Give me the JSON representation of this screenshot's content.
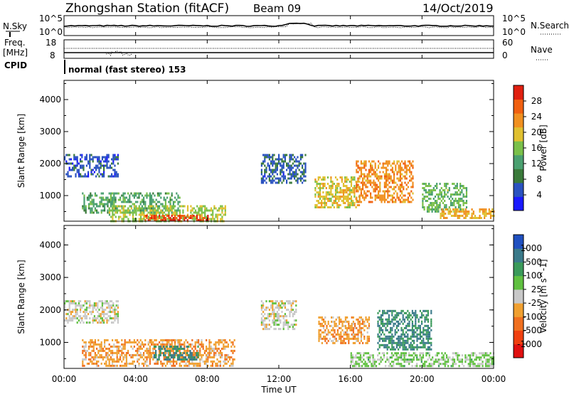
{
  "header": {
    "station": "Zhongshan Station (fitACF)",
    "beam": "Beam 09",
    "date": "14/Oct/2019"
  },
  "panel_sky": {
    "label_left": "N.Sky",
    "label_right": "N.Search",
    "yticks_left": [
      "10^5",
      "10^0"
    ],
    "yticks_right": [
      "10^5",
      "10^0"
    ]
  },
  "panel_freq": {
    "label_left_1": "Freq.",
    "label_left_2": "[MHz]",
    "label_right": "Nave",
    "yticks_left": [
      "18",
      "8"
    ],
    "yticks_right": [
      "60",
      "0"
    ]
  },
  "cpid": {
    "label": "CPID",
    "mode": "normal (fast stereo) 153"
  },
  "xaxis": {
    "label": "Time UT",
    "ticks": [
      "00:00",
      "04:00",
      "08:00",
      "12:00",
      "16:00",
      "20:00",
      "00:00"
    ]
  },
  "colors": {
    "scale_power": [
      "#1a1aff",
      "#2a52c0",
      "#3a7a3a",
      "#4aa070",
      "#7ac04a",
      "#e0c030",
      "#f09020",
      "#f06010",
      "#e02010"
    ],
    "scale_velocity": [
      "#e01010",
      "#f04010",
      "#f07020",
      "#f0a030",
      "#c8c8c8",
      "#60c040",
      "#3a9a5a",
      "#3a7a8a",
      "#2050c0"
    ]
  },
  "chart_data": [
    {
      "type": "heatmap",
      "title": "",
      "xlabel": "Time UT",
      "ylabel": "Slant Range [km]",
      "ylim": [
        200,
        4600
      ],
      "yticks": [
        "4000",
        "3000",
        "2000",
        "1000"
      ],
      "colorbar": {
        "label": "Power [dB]",
        "ticks": [
          "28",
          "24",
          "20",
          "16",
          "12",
          "8",
          "4"
        ],
        "range": [
          0,
          30
        ]
      },
      "regions": [
        {
          "t0": 0.0,
          "t1": 3.0,
          "r0": 1600,
          "r1": 2300,
          "value": 5
        },
        {
          "t0": 1.0,
          "t1": 6.5,
          "r0": 450,
          "r1": 1100,
          "value": 12
        },
        {
          "t0": 2.5,
          "t1": 9.0,
          "r0": 200,
          "r1": 700,
          "value": 16
        },
        {
          "t0": 4.5,
          "t1": 8.0,
          "r0": 200,
          "r1": 400,
          "value": 26
        },
        {
          "t0": 11.0,
          "t1": 13.5,
          "r0": 1400,
          "r1": 2300,
          "value": 6
        },
        {
          "t0": 14.0,
          "t1": 16.5,
          "r0": 600,
          "r1": 1600,
          "value": 18
        },
        {
          "t0": 16.3,
          "t1": 19.5,
          "r0": 800,
          "r1": 2100,
          "value": 22
        },
        {
          "t0": 20.0,
          "t1": 22.5,
          "r0": 500,
          "r1": 1400,
          "value": 14
        },
        {
          "t0": 21.0,
          "t1": 24.0,
          "r0": 300,
          "r1": 600,
          "value": 20
        }
      ]
    },
    {
      "type": "heatmap",
      "title": "",
      "xlabel": "Time UT",
      "ylabel": "Slant Range [km]",
      "ylim": [
        200,
        4600
      ],
      "yticks": [
        "4000",
        "3000",
        "2000",
        "1000"
      ],
      "colorbar": {
        "label": "Velocity [m s^-1]",
        "ticks": [
          "1000",
          "500",
          "100",
          "25",
          "-25",
          "-100",
          "-500",
          "-1000"
        ],
        "range": [
          -1200,
          1200
        ]
      },
      "regions": [
        {
          "t0": 0.0,
          "t1": 3.0,
          "r0": 1600,
          "r1": 2300,
          "value": 0
        },
        {
          "t0": 1.0,
          "t1": 9.5,
          "r0": 300,
          "r1": 1100,
          "value": -300
        },
        {
          "t0": 5.0,
          "t1": 7.5,
          "r0": 500,
          "r1": 900,
          "value": 700
        },
        {
          "t0": 11.0,
          "t1": 13.0,
          "r0": 1400,
          "r1": 2300,
          "value": 0
        },
        {
          "t0": 14.2,
          "t1": 17.0,
          "r0": 1000,
          "r1": 1800,
          "value": -300
        },
        {
          "t0": 17.5,
          "t1": 20.5,
          "r0": 800,
          "r1": 2000,
          "value": 700
        },
        {
          "t0": 16.0,
          "t1": 24.0,
          "r0": 300,
          "r1": 700,
          "value": 200
        }
      ]
    }
  ]
}
